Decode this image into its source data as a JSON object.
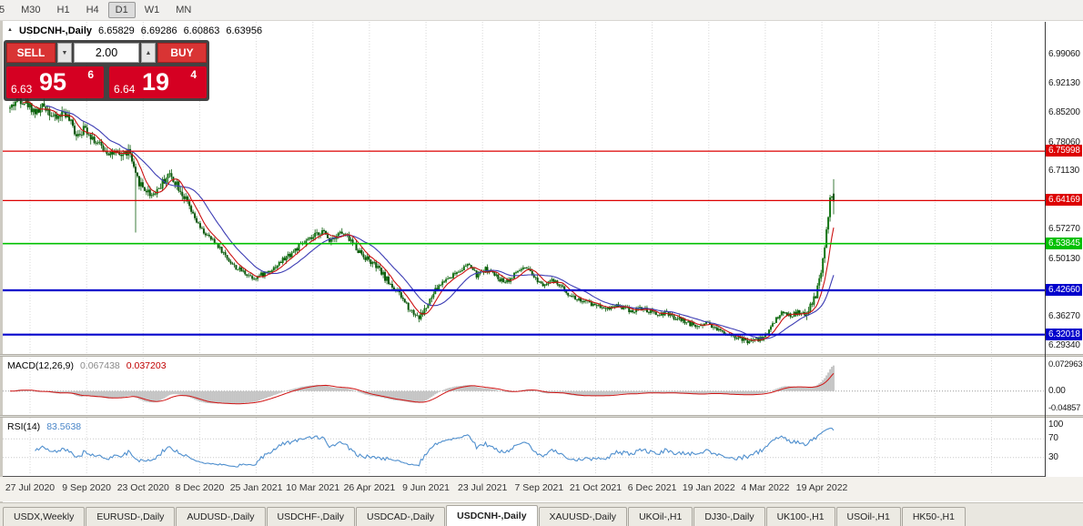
{
  "toolbar": {
    "timeframes": [
      "5",
      "M30",
      "H1",
      "H4",
      "D1",
      "W1",
      "MN"
    ],
    "active": "D1"
  },
  "icons": {
    "chart_shift": "▲",
    "spin_up": "▲",
    "spin_down": "▼"
  },
  "chart_header": {
    "title": "USDCNH-,Daily"
  },
  "trade_panel": {
    "sell_label": "SELL",
    "buy_label": "BUY",
    "volume": "2.00",
    "sell_price": {
      "prefix": "6.63",
      "big": "95",
      "sup": "6"
    },
    "buy_price": {
      "prefix": "6.64",
      "big": "19",
      "sup": "4"
    }
  },
  "price_axis": {
    "labels": [
      {
        "text": "6.99060",
        "price": 6.9906
      },
      {
        "text": "6.92130",
        "price": 6.9213
      },
      {
        "text": "6.85200",
        "price": 6.852
      },
      {
        "text": "6.78060",
        "price": 6.7806
      },
      {
        "text": "6.71130",
        "price": 6.7113
      },
      {
        "text": "6.57270",
        "price": 6.5727
      },
      {
        "text": "6.50130",
        "price": 6.5013
      },
      {
        "text": "6.36270",
        "price": 6.3627
      },
      {
        "text": "6.29340",
        "price": 6.2934
      }
    ]
  },
  "macd_panel": {
    "label": "MACD(12,26,9)",
    "value_main": "0.067438",
    "value_signal": "0.037203",
    "axis": [
      {
        "text": "0.072963",
        "v": 0.072963
      },
      {
        "text": "0.00",
        "v": 0
      },
      {
        "text": "-0.04857",
        "v": -0.04857
      }
    ]
  },
  "rsi_panel": {
    "label": "RSI(14)",
    "value": "83.5638",
    "axis": [
      {
        "text": "100",
        "v": 100
      },
      {
        "text": "70",
        "v": 70
      },
      {
        "text": "30",
        "v": 30
      }
    ]
  },
  "tabs": {
    "items": [
      "USDX,Weekly",
      "EURUSD-,Daily",
      "AUDUSD-,Daily",
      "USDCHF-,Daily",
      "USDCAD-,Daily",
      "USDCNH-,Daily",
      "XAUUSD-,Daily",
      "UKOil-,H1",
      "DJ30-,Daily",
      "UK100-,H1",
      "USOil-,H1",
      "HK50-,H1"
    ],
    "active": "USDCNH-,Daily"
  },
  "chart_data": {
    "type": "candlestick",
    "symbol": "USDCNH-",
    "timeframe": "Daily",
    "ohlc_current": {
      "open": 6.65829,
      "high": 6.69286,
      "low": 6.60863,
      "close": 6.63956
    },
    "y_range": {
      "top": 7.07,
      "bottom": 6.276
    },
    "x_labels": [
      "27 Jul 2020",
      "9 Sep 2020",
      "23 Oct 2020",
      "8 Dec 2020",
      "25 Jan 2021",
      "10 Mar 2021",
      "26 Apr 2021",
      "9 Jun 2021",
      "23 Jul 2021",
      "7 Sep 2021",
      "21 Oct 2021",
      "6 Dec 2021",
      "19 Jan 2022",
      "4 Mar 2022",
      "19 Apr 2022"
    ],
    "levels": [
      {
        "label": "6.75998",
        "price": 6.75998,
        "color": "#dd0000",
        "width": 1.3
      },
      {
        "label": "6.64169",
        "price": 6.64169,
        "color": "#dd0000",
        "width": 1.3
      },
      {
        "label": "6.53845",
        "price": 6.53845,
        "color": "#00c000",
        "width": 1.6
      },
      {
        "label": "6.42660",
        "price": 6.4266,
        "color": "#0000cc",
        "width": 2.2
      },
      {
        "label": "6.32018",
        "price": 6.32018,
        "color": "#0000cc",
        "width": 2.2
      }
    ],
    "candle_count": 460,
    "event_drop": {
      "f": 0.152,
      "low": 6.565
    },
    "style": {
      "bull_color": "#137413",
      "bear_color": "#0a560a",
      "wick_color": "#0c5c0c"
    },
    "indicators": {
      "ma": [
        {
          "period": 8,
          "color": "#cc1111"
        },
        {
          "period": 21,
          "color": "#3c3cb4"
        }
      ],
      "macd": {
        "fast": 12,
        "slow": 26,
        "signal": 9,
        "value_main": 0.067438,
        "value_signal": 0.037203
      },
      "rsi": {
        "period": 14,
        "value": 83.5638,
        "levels": [
          70,
          30
        ]
      }
    },
    "close_path_anchors": [
      [
        0.0,
        6.862
      ],
      [
        0.01,
        6.888
      ],
      [
        0.02,
        6.876
      ],
      [
        0.032,
        6.852
      ],
      [
        0.042,
        6.87
      ],
      [
        0.055,
        6.836
      ],
      [
        0.066,
        6.856
      ],
      [
        0.08,
        6.802
      ],
      [
        0.092,
        6.815
      ],
      [
        0.105,
        6.78
      ],
      [
        0.118,
        6.76
      ],
      [
        0.132,
        6.748
      ],
      [
        0.145,
        6.76
      ],
      [
        0.152,
        6.7
      ],
      [
        0.162,
        6.672
      ],
      [
        0.172,
        6.656
      ],
      [
        0.182,
        6.675
      ],
      [
        0.192,
        6.705
      ],
      [
        0.202,
        6.686
      ],
      [
        0.212,
        6.648
      ],
      [
        0.222,
        6.606
      ],
      [
        0.232,
        6.572
      ],
      [
        0.242,
        6.552
      ],
      [
        0.252,
        6.535
      ],
      [
        0.262,
        6.508
      ],
      [
        0.273,
        6.482
      ],
      [
        0.284,
        6.47
      ],
      [
        0.296,
        6.456
      ],
      [
        0.308,
        6.466
      ],
      [
        0.32,
        6.48
      ],
      [
        0.332,
        6.5
      ],
      [
        0.344,
        6.52
      ],
      [
        0.356,
        6.538
      ],
      [
        0.368,
        6.552
      ],
      [
        0.378,
        6.57
      ],
      [
        0.388,
        6.548
      ],
      [
        0.4,
        6.566
      ],
      [
        0.412,
        6.55
      ],
      [
        0.424,
        6.52
      ],
      [
        0.436,
        6.498
      ],
      [
        0.448,
        6.476
      ],
      [
        0.458,
        6.45
      ],
      [
        0.468,
        6.428
      ],
      [
        0.478,
        6.402
      ],
      [
        0.488,
        6.376
      ],
      [
        0.497,
        6.362
      ],
      [
        0.507,
        6.39
      ],
      [
        0.517,
        6.428
      ],
      [
        0.527,
        6.45
      ],
      [
        0.538,
        6.464
      ],
      [
        0.548,
        6.478
      ],
      [
        0.558,
        6.488
      ],
      [
        0.567,
        6.46
      ],
      [
        0.577,
        6.478
      ],
      [
        0.587,
        6.465
      ],
      [
        0.597,
        6.45
      ],
      [
        0.607,
        6.452
      ],
      [
        0.617,
        6.474
      ],
      [
        0.627,
        6.478
      ],
      [
        0.637,
        6.456
      ],
      [
        0.647,
        6.442
      ],
      [
        0.657,
        6.45
      ],
      [
        0.666,
        6.44
      ],
      [
        0.676,
        6.422
      ],
      [
        0.686,
        6.408
      ],
      [
        0.696,
        6.4
      ],
      [
        0.706,
        6.394
      ],
      [
        0.716,
        6.39
      ],
      [
        0.726,
        6.383
      ],
      [
        0.736,
        6.392
      ],
      [
        0.746,
        6.384
      ],
      [
        0.756,
        6.377
      ],
      [
        0.766,
        6.385
      ],
      [
        0.776,
        6.374
      ],
      [
        0.786,
        6.368
      ],
      [
        0.796,
        6.372
      ],
      [
        0.806,
        6.36
      ],
      [
        0.816,
        6.356
      ],
      [
        0.826,
        6.346
      ],
      [
        0.836,
        6.34
      ],
      [
        0.846,
        6.352
      ],
      [
        0.856,
        6.336
      ],
      [
        0.866,
        6.326
      ],
      [
        0.876,
        6.32
      ],
      [
        0.886,
        6.31
      ],
      [
        0.896,
        6.304
      ],
      [
        0.906,
        6.308
      ],
      [
        0.916,
        6.314
      ],
      [
        0.924,
        6.34
      ],
      [
        0.932,
        6.364
      ],
      [
        0.94,
        6.374
      ],
      [
        0.948,
        6.366
      ],
      [
        0.956,
        6.373
      ],
      [
        0.964,
        6.368
      ],
      [
        0.97,
        6.38
      ],
      [
        0.976,
        6.402
      ],
      [
        0.981,
        6.436
      ],
      [
        0.986,
        6.48
      ],
      [
        0.99,
        6.545
      ],
      [
        0.994,
        6.612
      ],
      [
        0.997,
        6.662
      ],
      [
        1.0,
        6.64
      ]
    ]
  }
}
